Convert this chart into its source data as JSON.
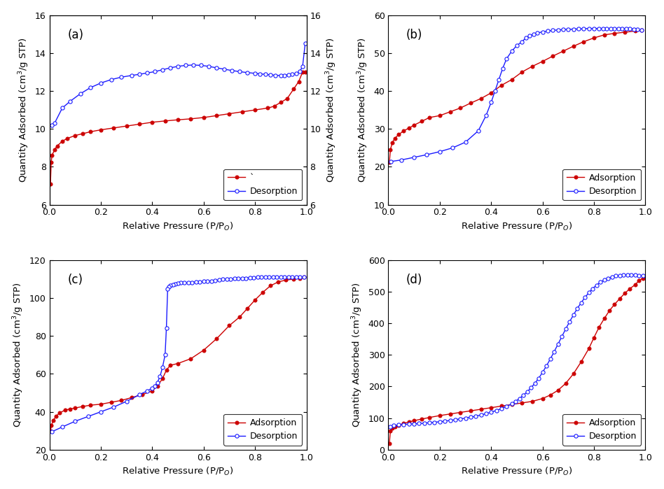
{
  "panels": [
    {
      "label": "(a)",
      "ylim": [
        6,
        16
      ],
      "yticks": [
        6,
        8,
        10,
        12,
        14,
        16
      ],
      "legend_label_ads": "`",
      "has_right_ylabel": true,
      "adsorption_x": [
        0.004,
        0.007,
        0.01,
        0.02,
        0.03,
        0.05,
        0.07,
        0.1,
        0.13,
        0.16,
        0.2,
        0.25,
        0.3,
        0.35,
        0.4,
        0.45,
        0.5,
        0.55,
        0.6,
        0.65,
        0.7,
        0.75,
        0.8,
        0.85,
        0.875,
        0.9,
        0.925,
        0.95,
        0.97,
        0.985,
        0.995
      ],
      "adsorption_y": [
        7.1,
        8.25,
        8.6,
        8.9,
        9.1,
        9.35,
        9.5,
        9.65,
        9.75,
        9.85,
        9.95,
        10.05,
        10.15,
        10.25,
        10.35,
        10.42,
        10.48,
        10.53,
        10.6,
        10.7,
        10.8,
        10.9,
        11.0,
        11.1,
        11.2,
        11.4,
        11.6,
        12.1,
        12.5,
        13.0,
        13.0
      ],
      "desorption_x": [
        0.995,
        0.985,
        0.975,
        0.96,
        0.945,
        0.93,
        0.915,
        0.9,
        0.88,
        0.86,
        0.84,
        0.82,
        0.8,
        0.77,
        0.74,
        0.71,
        0.68,
        0.65,
        0.62,
        0.59,
        0.56,
        0.53,
        0.5,
        0.47,
        0.44,
        0.41,
        0.38,
        0.35,
        0.32,
        0.28,
        0.24,
        0.2,
        0.16,
        0.12,
        0.08,
        0.05,
        0.02,
        0.01
      ],
      "desorption_y": [
        14.5,
        13.3,
        13.05,
        12.92,
        12.88,
        12.85,
        12.83,
        12.82,
        12.83,
        12.85,
        12.88,
        12.9,
        12.93,
        12.97,
        13.02,
        13.08,
        13.15,
        13.22,
        13.3,
        13.35,
        13.37,
        13.35,
        13.3,
        13.22,
        13.12,
        13.02,
        12.95,
        12.88,
        12.82,
        12.73,
        12.6,
        12.42,
        12.18,
        11.85,
        11.45,
        11.1,
        10.3,
        10.2
      ]
    },
    {
      "label": "(b)",
      "ylim": [
        10,
        60
      ],
      "yticks": [
        10,
        20,
        30,
        40,
        50,
        60
      ],
      "legend_label_ads": "Adsorption",
      "has_right_ylabel": false,
      "adsorption_x": [
        0.004,
        0.008,
        0.015,
        0.025,
        0.04,
        0.06,
        0.08,
        0.1,
        0.13,
        0.16,
        0.2,
        0.24,
        0.28,
        0.32,
        0.36,
        0.4,
        0.44,
        0.48,
        0.52,
        0.56,
        0.6,
        0.64,
        0.68,
        0.72,
        0.76,
        0.8,
        0.84,
        0.88,
        0.92,
        0.96,
        0.985
      ],
      "adsorption_y": [
        21.1,
        24.5,
        26.3,
        27.5,
        28.5,
        29.5,
        30.2,
        31.0,
        32.0,
        33.0,
        33.5,
        34.5,
        35.5,
        36.8,
        38.0,
        39.5,
        41.5,
        43.0,
        45.0,
        46.5,
        47.8,
        49.2,
        50.5,
        51.8,
        53.0,
        54.0,
        54.8,
        55.2,
        55.5,
        55.8,
        56.0
      ],
      "desorption_x": [
        0.985,
        0.97,
        0.955,
        0.94,
        0.925,
        0.91,
        0.895,
        0.88,
        0.865,
        0.85,
        0.835,
        0.82,
        0.8,
        0.78,
        0.76,
        0.74,
        0.72,
        0.7,
        0.68,
        0.66,
        0.64,
        0.62,
        0.6,
        0.58,
        0.565,
        0.55,
        0.535,
        0.52,
        0.5,
        0.48,
        0.46,
        0.445,
        0.43,
        0.415,
        0.4,
        0.38,
        0.35,
        0.3,
        0.25,
        0.2,
        0.15,
        0.1,
        0.05,
        0.01
      ],
      "desorption_y": [
        56.0,
        56.2,
        56.3,
        56.4,
        56.45,
        56.5,
        56.5,
        56.5,
        56.5,
        56.5,
        56.5,
        56.5,
        56.5,
        56.5,
        56.4,
        56.4,
        56.3,
        56.3,
        56.2,
        56.1,
        56.0,
        55.8,
        55.6,
        55.3,
        55.0,
        54.5,
        54.0,
        53.0,
        52.0,
        50.5,
        48.5,
        46.0,
        43.0,
        40.0,
        37.0,
        33.5,
        29.5,
        26.5,
        25.0,
        24.0,
        23.2,
        22.5,
        21.8,
        21.4
      ]
    },
    {
      "label": "(c)",
      "ylim": [
        20,
        120
      ],
      "yticks": [
        20,
        40,
        60,
        80,
        100,
        120
      ],
      "legend_label_ads": "Adsorption",
      "has_right_ylabel": false,
      "adsorption_x": [
        0.004,
        0.008,
        0.015,
        0.025,
        0.04,
        0.06,
        0.08,
        0.1,
        0.13,
        0.16,
        0.2,
        0.24,
        0.28,
        0.32,
        0.36,
        0.4,
        0.42,
        0.44,
        0.455,
        0.47,
        0.5,
        0.55,
        0.6,
        0.65,
        0.7,
        0.74,
        0.77,
        0.8,
        0.83,
        0.86,
        0.89,
        0.92,
        0.95,
        0.975,
        0.99
      ],
      "adsorption_y": [
        30.0,
        33.0,
        35.5,
        37.5,
        39.5,
        40.8,
        41.5,
        42.0,
        42.8,
        43.5,
        44.0,
        45.0,
        46.0,
        47.5,
        49.0,
        51.0,
        53.5,
        57.5,
        62.0,
        64.5,
        65.5,
        68.0,
        72.5,
        78.5,
        85.5,
        90.0,
        94.5,
        99.0,
        103.0,
        106.5,
        108.5,
        109.5,
        110.0,
        110.5,
        111.0
      ],
      "desorption_x": [
        0.99,
        0.975,
        0.96,
        0.945,
        0.93,
        0.915,
        0.9,
        0.885,
        0.87,
        0.855,
        0.84,
        0.825,
        0.81,
        0.795,
        0.78,
        0.765,
        0.75,
        0.735,
        0.72,
        0.705,
        0.69,
        0.675,
        0.66,
        0.645,
        0.63,
        0.615,
        0.6,
        0.585,
        0.57,
        0.555,
        0.54,
        0.525,
        0.51,
        0.5,
        0.49,
        0.48,
        0.47,
        0.465,
        0.46,
        0.455,
        0.45,
        0.44,
        0.43,
        0.42,
        0.41,
        0.4,
        0.38,
        0.35,
        0.3,
        0.25,
        0.2,
        0.15,
        0.1,
        0.05,
        0.01
      ],
      "desorption_y": [
        111.0,
        111.0,
        111.0,
        111.0,
        111.0,
        111.0,
        111.0,
        111.0,
        111.0,
        111.0,
        111.0,
        111.0,
        111.0,
        110.8,
        110.8,
        110.5,
        110.5,
        110.3,
        110.2,
        110.0,
        110.0,
        109.8,
        109.5,
        109.3,
        109.0,
        108.8,
        108.7,
        108.6,
        108.5,
        108.3,
        108.2,
        108.0,
        108.0,
        107.8,
        107.5,
        107.0,
        106.5,
        106.0,
        105.0,
        84.0,
        70.0,
        63.5,
        58.5,
        55.5,
        53.5,
        52.5,
        51.0,
        49.0,
        45.5,
        42.5,
        40.0,
        37.5,
        35.0,
        32.0,
        29.5
      ]
    },
    {
      "label": "(d)",
      "ylim": [
        0,
        600
      ],
      "yticks": [
        0,
        100,
        200,
        300,
        400,
        500,
        600
      ],
      "legend_label_ads": "Adsorption",
      "has_right_ylabel": false,
      "adsorption_x": [
        0.004,
        0.008,
        0.015,
        0.025,
        0.04,
        0.06,
        0.08,
        0.1,
        0.13,
        0.16,
        0.2,
        0.24,
        0.28,
        0.32,
        0.36,
        0.4,
        0.44,
        0.48,
        0.52,
        0.56,
        0.6,
        0.63,
        0.66,
        0.69,
        0.72,
        0.75,
        0.78,
        0.8,
        0.82,
        0.84,
        0.86,
        0.88,
        0.9,
        0.92,
        0.94,
        0.96,
        0.975,
        0.99
      ],
      "adsorption_y": [
        20.0,
        60.0,
        68.0,
        73.0,
        78.0,
        83.0,
        88.0,
        92.0,
        97.0,
        102.0,
        108.0,
        113.0,
        118.0,
        123.0,
        128.0,
        133.0,
        138.0,
        143.0,
        148.0,
        153.0,
        162.0,
        173.0,
        188.0,
        210.0,
        240.0,
        278.0,
        320.0,
        355.0,
        388.0,
        415.0,
        440.0,
        460.0,
        478.0,
        495.0,
        510.0,
        522.0,
        535.0,
        543.0
      ],
      "desorption_x": [
        0.99,
        0.975,
        0.96,
        0.945,
        0.93,
        0.915,
        0.9,
        0.885,
        0.87,
        0.855,
        0.84,
        0.825,
        0.81,
        0.795,
        0.78,
        0.765,
        0.75,
        0.735,
        0.72,
        0.705,
        0.69,
        0.675,
        0.66,
        0.645,
        0.63,
        0.615,
        0.6,
        0.585,
        0.57,
        0.555,
        0.54,
        0.525,
        0.51,
        0.495,
        0.48,
        0.46,
        0.44,
        0.42,
        0.4,
        0.38,
        0.36,
        0.34,
        0.32,
        0.3,
        0.28,
        0.26,
        0.24,
        0.22,
        0.2,
        0.18,
        0.16,
        0.14,
        0.12,
        0.1,
        0.08,
        0.06,
        0.04,
        0.02,
        0.008
      ],
      "desorption_y": [
        550.0,
        552.0,
        553.0,
        553.5,
        553.5,
        553.0,
        552.0,
        550.0,
        547.0,
        543.0,
        537.0,
        530.0,
        521.0,
        510.0,
        497.0,
        482.0,
        465.0,
        447.0,
        426.0,
        405.0,
        382.0,
        358.0,
        334.0,
        310.0,
        287.0,
        265.0,
        245.0,
        226.0,
        210.0,
        196.0,
        183.0,
        172.0,
        162.0,
        153.0,
        145.0,
        137.0,
        130.0,
        124.0,
        119.0,
        114.0,
        110.0,
        106.0,
        103.0,
        100.0,
        97.5,
        95.0,
        92.5,
        90.5,
        88.5,
        87.0,
        85.5,
        84.0,
        83.0,
        82.0,
        81.0,
        80.0,
        78.5,
        76.0,
        73.0
      ]
    }
  ],
  "xlabel": "Relative Pressure (P/P$_O$)",
  "ylabel": "Quantity Adsorbed (cm$^3$/g STP)",
  "adsorption_color": "#cc0000",
  "desorption_color": "#1a1aff",
  "bg_color": "#ffffff",
  "xlim": [
    0.0,
    1.0
  ],
  "xticks": [
    0.0,
    0.2,
    0.4,
    0.6,
    0.8,
    1.0
  ]
}
